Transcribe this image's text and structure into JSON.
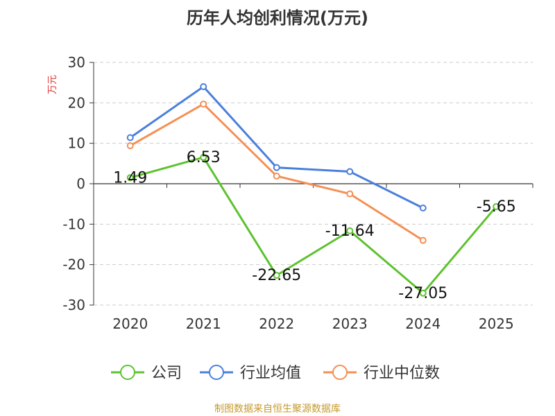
{
  "chart_data": {
    "type": "line",
    "title": "历年人均创利情况(万元)",
    "ylabel": "万元",
    "x": [
      "2020",
      "2021",
      "2022",
      "2023",
      "2024",
      "2025"
    ],
    "ylim": [
      -30,
      30
    ],
    "yticks": [
      -30,
      -20,
      -10,
      0,
      10,
      20,
      30
    ],
    "grid": true,
    "legend_position": "bottom",
    "series": [
      {
        "name": "公司",
        "color": "#5dc22f",
        "values": [
          1.49,
          6.53,
          -22.65,
          -11.64,
          -27.05,
          -5.65
        ],
        "labels": [
          "1.49",
          "6.53",
          "-22.65",
          "-11.64",
          "-27.05",
          "-5.65"
        ]
      },
      {
        "name": "行业均值",
        "color": "#4a7fdc",
        "values": [
          11.4,
          24.0,
          4.0,
          3.0,
          -6.0,
          null
        ]
      },
      {
        "name": "行业中位数",
        "color": "#f58f54",
        "values": [
          9.4,
          19.7,
          1.9,
          -2.5,
          -14.0,
          null
        ]
      }
    ]
  },
  "source_note": "制图数据来自恒生聚源数据库",
  "colors": {
    "title": "#333333",
    "axis": "#333333",
    "grid": "#cccccc",
    "ylabel": "#e03b3b",
    "source": "#c49a2c"
  }
}
